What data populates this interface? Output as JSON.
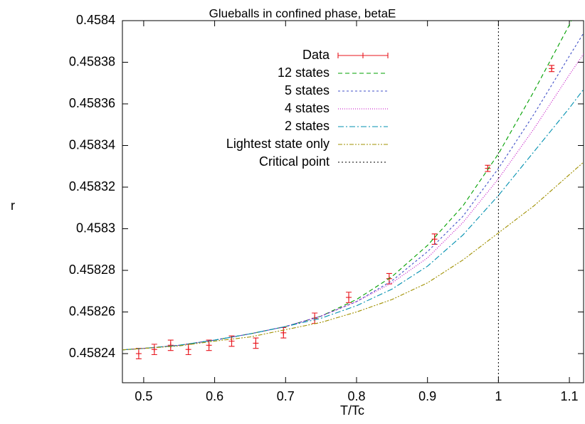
{
  "chart_data": {
    "type": "line",
    "title": "Glueballs in confined phase, betaE",
    "xlabel": "T/Tc",
    "ylabel": "r",
    "xlim": [
      0.47,
      1.12
    ],
    "ylim": [
      0.458226,
      0.4584
    ],
    "xticks": [
      0.5,
      0.6,
      0.7,
      0.8,
      0.9,
      1,
      1.1
    ],
    "yticks": [
      0.45824,
      0.45826,
      0.45828,
      0.4583,
      0.45832,
      0.45834,
      0.45836,
      0.45838,
      0.4584
    ],
    "legend": "top-left",
    "x": [
      0.47,
      0.5,
      0.55,
      0.6,
      0.65,
      0.7,
      0.75,
      0.8,
      0.85,
      0.9,
      0.95,
      1.0,
      1.05,
      1.1,
      1.12
    ],
    "series": [
      {
        "name": "Data",
        "kind": "errorbar",
        "color": "#e8141c",
        "x": [
          0.493,
          0.515,
          0.538,
          0.563,
          0.592,
          0.624,
          0.658,
          0.697,
          0.741,
          0.789,
          0.846,
          0.91,
          0.985,
          1.075
        ],
        "values": [
          0.45824,
          0.458242,
          0.458244,
          0.458242,
          0.458244,
          0.458246,
          0.458245,
          0.45825,
          0.458257,
          0.458267,
          0.458276,
          0.458295,
          0.458329,
          0.458377
        ],
        "errors": [
          2.5e-06,
          2.5e-06,
          2.5e-06,
          2.5e-06,
          2.5e-06,
          2.5e-06,
          2.5e-06,
          2.5e-06,
          2.5e-06,
          2.5e-06,
          2.5e-06,
          2.5e-06,
          1.5e-06,
          1.5e-06
        ]
      },
      {
        "name": "12 states",
        "color": "#00a000",
        "dash": "6,4",
        "values": [
          0.4582418,
          0.4582425,
          0.458244,
          0.4582465,
          0.4582495,
          0.458253,
          0.458258,
          0.458266,
          0.458277,
          0.458292,
          0.458311,
          0.458336,
          0.458366,
          0.458398,
          0.458412
        ]
      },
      {
        "name": "5 states",
        "color": "#4050c8",
        "dash": "3,3",
        "values": [
          0.4582418,
          0.4582425,
          0.458244,
          0.4582465,
          0.4582495,
          0.458253,
          0.458258,
          0.458265,
          0.458275,
          0.458289,
          0.458306,
          0.458329,
          0.458355,
          0.458383,
          0.458394
        ]
      },
      {
        "name": "4 states",
        "color": "#c000c0",
        "dash": "1,2",
        "values": [
          0.4582418,
          0.4582425,
          0.458244,
          0.4582465,
          0.4582495,
          0.458253,
          0.458258,
          0.458265,
          0.458274,
          0.458286,
          0.458303,
          0.458324,
          0.458348,
          0.458374,
          0.458384
        ]
      },
      {
        "name": "2 states",
        "color": "#0090b0",
        "dash": "8,3,2,3",
        "values": [
          0.4582418,
          0.4582425,
          0.458244,
          0.4582465,
          0.4582495,
          0.458253,
          0.458257,
          0.458263,
          0.458271,
          0.458282,
          0.458297,
          0.458316,
          0.458337,
          0.458358,
          0.458367
        ]
      },
      {
        "name": "Lightest state only",
        "color": "#a09000",
        "dash": "6,2,2,2,2,2",
        "values": [
          0.4582418,
          0.4582425,
          0.4582437,
          0.458246,
          0.458248,
          0.4582515,
          0.458255,
          0.45826,
          0.458266,
          0.458274,
          0.458285,
          0.458298,
          0.458311,
          0.458326,
          0.458332
        ]
      },
      {
        "name": "Critical point",
        "kind": "vline",
        "color": "#000000",
        "dash": "2,3",
        "x": 1
      }
    ]
  }
}
